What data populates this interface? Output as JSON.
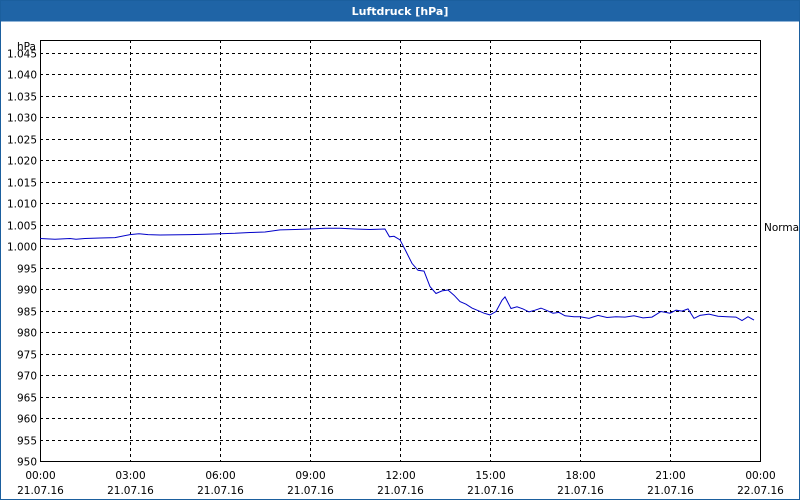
{
  "window": {
    "title": "Luftdruck [hPa]"
  },
  "chart_data": {
    "type": "line",
    "title": "Luftdruck [hPa]",
    "ylabel": "hPa",
    "xlabel": "",
    "ylim": [
      950,
      1048
    ],
    "xlim": [
      0,
      24
    ],
    "y_ticks": [
      950,
      955,
      960,
      965,
      970,
      975,
      980,
      985,
      990,
      995,
      1000,
      1005,
      1010,
      1015,
      1020,
      1025,
      1030,
      1035,
      1040,
      1045
    ],
    "y_tick_labels": [
      "950",
      "955",
      "960",
      "965",
      "970",
      "975",
      "980",
      "985",
      "990",
      "995",
      "1.000",
      "1.005",
      "1.010",
      "1.015",
      "1.020",
      "1.025",
      "1.030",
      "1.035",
      "1.040",
      "1.045"
    ],
    "x_ticks": [
      {
        "hour": 0,
        "time": "00:00",
        "date": "21.07.16"
      },
      {
        "hour": 3,
        "time": "03:00",
        "date": "21.07.16"
      },
      {
        "hour": 6,
        "time": "06:00",
        "date": "21.07.16"
      },
      {
        "hour": 9,
        "time": "09:00",
        "date": "21.07.16"
      },
      {
        "hour": 12,
        "time": "12:00",
        "date": "21.07.16"
      },
      {
        "hour": 15,
        "time": "15:00",
        "date": "21.07.16"
      },
      {
        "hour": 18,
        "time": "18:00",
        "date": "21.07.16"
      },
      {
        "hour": 21,
        "time": "21:00",
        "date": "21.07.16"
      },
      {
        "hour": 24,
        "time": "00:00",
        "date": "22.07.16"
      }
    ],
    "grid": true,
    "reference_line": {
      "label": "Normal",
      "value": 1004.5
    },
    "colors": {
      "series": "#0000c8",
      "grid": "#000000",
      "title_bar": "#1f64a6"
    },
    "series": [
      {
        "x": [
          0,
          0.5,
          1.0,
          1.2,
          1.5,
          2.0,
          2.5,
          3.0,
          3.3,
          3.6,
          4.0,
          5.0,
          5.5,
          6.0,
          6.5,
          7.0,
          7.5,
          8.0,
          8.5,
          9.0,
          9.5,
          10.0,
          10.5,
          11.0,
          11.5,
          11.65,
          11.8,
          12.0,
          12.2,
          12.4,
          12.6,
          12.8,
          13.0,
          13.2,
          13.4,
          13.6,
          13.8,
          14.0,
          14.2,
          14.4,
          14.6,
          14.8,
          15.0,
          15.2,
          15.4,
          15.5,
          15.7,
          15.9,
          16.1,
          16.3,
          16.5,
          16.7,
          16.9,
          17.1,
          17.3,
          17.5,
          17.8,
          18.0,
          18.3,
          18.6,
          18.9,
          19.2,
          19.5,
          19.8,
          20.1,
          20.4,
          20.7,
          21.0,
          21.2,
          21.4,
          21.6,
          21.8,
          22.0,
          22.3,
          22.6,
          22.9,
          23.2,
          23.4,
          23.6,
          23.8
        ],
        "values": [
          1001.8,
          1001.6,
          1001.8,
          1001.6,
          1001.8,
          1001.9,
          1002.0,
          1002.7,
          1002.9,
          1002.7,
          1002.6,
          1002.7,
          1002.8,
          1002.9,
          1003.0,
          1003.2,
          1003.3,
          1003.8,
          1003.9,
          1004.0,
          1004.2,
          1004.2,
          1004.0,
          1003.9,
          1004.0,
          1002.2,
          1002.3,
          1001.5,
          998.8,
          996.0,
          994.4,
          994.2,
          990.6,
          989.0,
          989.6,
          989.8,
          988.6,
          987.1,
          986.5,
          985.6,
          985.0,
          984.4,
          984.0,
          984.8,
          987.4,
          988.2,
          985.5,
          985.9,
          985.4,
          984.7,
          985.1,
          985.6,
          985.0,
          984.4,
          984.6,
          983.8,
          983.6,
          983.6,
          983.2,
          983.9,
          983.4,
          983.6,
          983.5,
          983.8,
          983.3,
          983.5,
          984.8,
          984.4,
          985.1,
          984.9,
          985.4,
          983.2,
          983.9,
          984.2,
          983.7,
          983.6,
          983.5,
          982.7,
          983.6,
          982.8
        ]
      }
    ]
  }
}
